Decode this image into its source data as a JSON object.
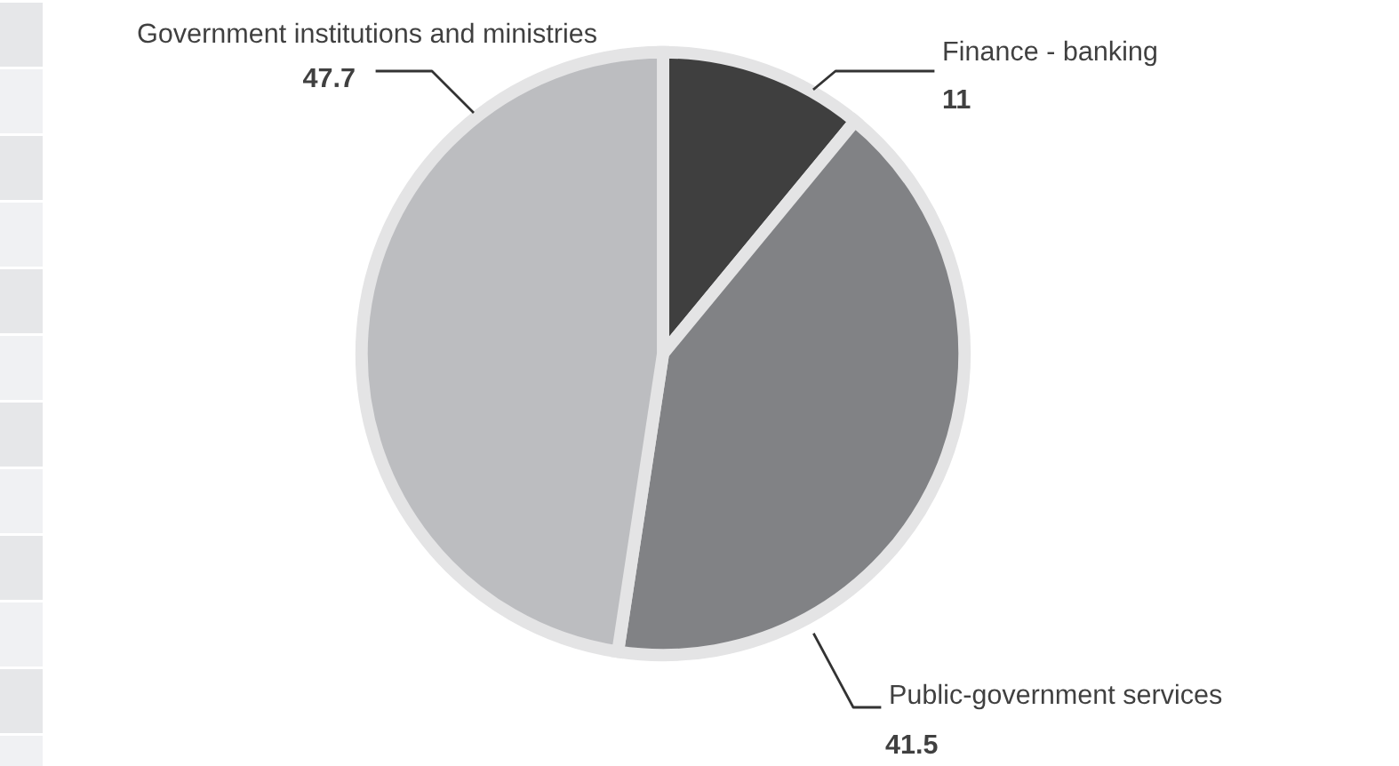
{
  "chart_data": {
    "type": "pie",
    "categories": [
      "Finance - banking",
      "Public-government services",
      "Government institutions and ministries"
    ],
    "values": [
      11,
      41.5,
      47.7
    ],
    "colors": [
      "#3f3f3f",
      "#818285",
      "#bcbdc0"
    ],
    "data_labels": true,
    "legend": false
  }
}
